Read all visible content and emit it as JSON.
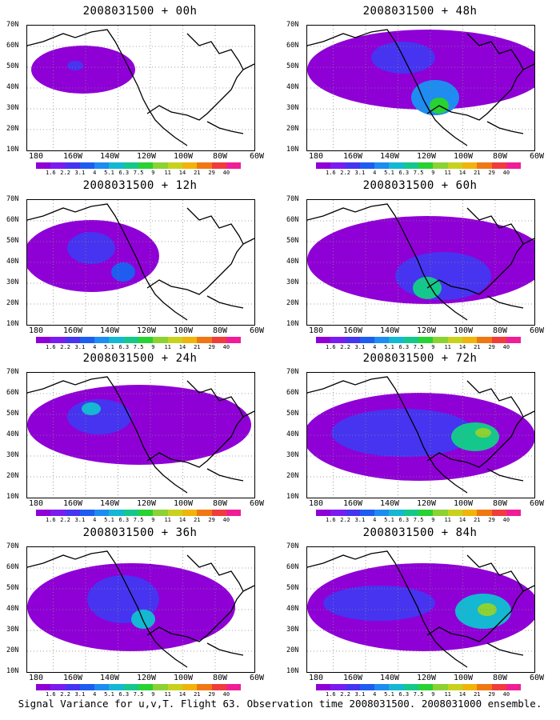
{
  "panels": [
    {
      "title": "2008031500 + 00h"
    },
    {
      "title": "2008031500 + 48h"
    },
    {
      "title": "2008031500 + 12h"
    },
    {
      "title": "2008031500 + 60h"
    },
    {
      "title": "2008031500 + 24h"
    },
    {
      "title": "2008031500 + 72h"
    },
    {
      "title": "2008031500 + 36h"
    },
    {
      "title": "2008031500 + 84h"
    }
  ],
  "axes": {
    "lat_labels": [
      "70N",
      "60N",
      "50N",
      "40N",
      "30N",
      "20N",
      "10N"
    ],
    "lon_labels": [
      "180",
      "160W",
      "140W",
      "120W",
      "100W",
      "80W",
      "60W"
    ]
  },
  "colorbar": {
    "labels": [
      "1.6",
      "2.2",
      "3.1",
      "4",
      "5.1",
      "6.3",
      "7.5",
      "9",
      "11",
      "14",
      "21",
      "29",
      "40"
    ],
    "colors": [
      "#8f00d6",
      "#7a1cf0",
      "#4634f0",
      "#1f5cf0",
      "#1e8cf0",
      "#14b8d2",
      "#14c88c",
      "#28d232",
      "#8cd232",
      "#c8d21e",
      "#f0b40a",
      "#f07814",
      "#f03c3c",
      "#f01e96"
    ]
  },
  "footer": "Signal Variance for u,v,T. Flight 63. Observation time 2008031500. 2008031000 ensemble."
}
